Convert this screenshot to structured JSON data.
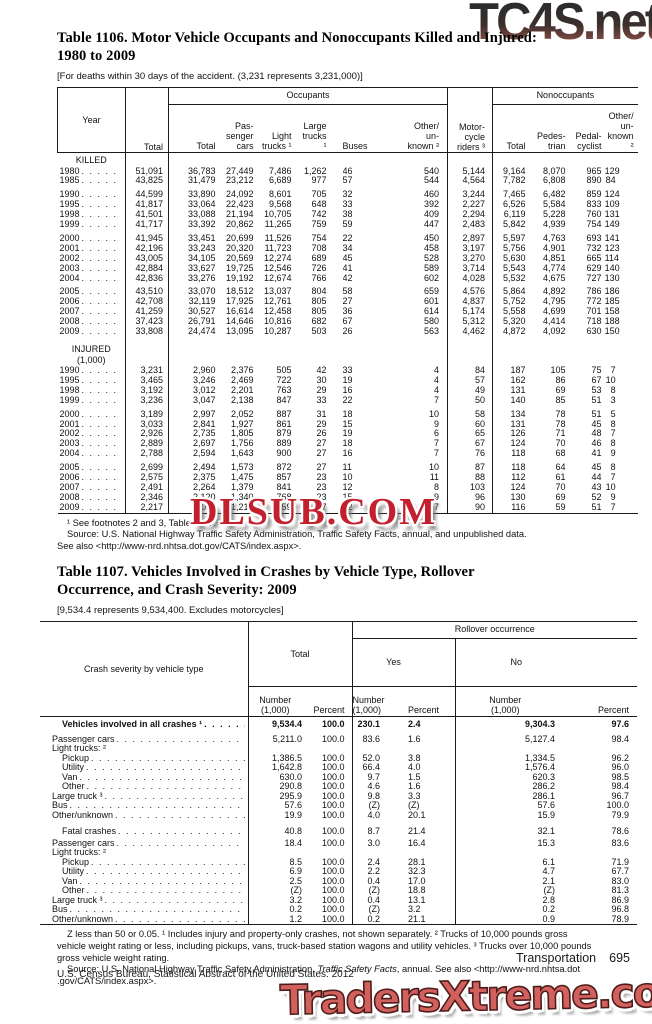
{
  "watermarks": {
    "top": "TC4S.net",
    "middle": "DLSUB.COM",
    "bottom": "TradersXtreme.com"
  },
  "page_footer": {
    "section": "Transportation",
    "page_number": "695",
    "census_line": "U.S. Census Bureau, Statistical Abstract of the United States: 2012"
  },
  "table1106": {
    "title_lines": [
      "Table 1106. Motor Vehicle Occupants and Nonoccupants Killed and Injured:",
      "1980 to 2009"
    ],
    "note": "[For deaths within 30 days of the accident. (3,231 represents 3,231,000)]",
    "header": {
      "year": "Year",
      "total": "Total",
      "occupants": "Occupants",
      "nonoccupants": "Nonoccupants",
      "motorcycle": "Motor-\ncycle\nriders ³",
      "occ_cols": [
        "Total",
        "Pas-\nsenger\ncars",
        "Light\ntrucks ¹",
        "Large\ntrucks ¹",
        "Buses",
        "Other/\nun-\nknown ²"
      ],
      "non_cols": [
        "Total",
        "Pedes-\ntrian",
        "Pedal-\ncyclist",
        "Other/\nun-\nknown ²"
      ]
    },
    "sections": [
      {
        "label": "KILLED",
        "groups": [
          [
            [
              "1980",
              "51,091",
              "36,783",
              "27,449",
              "7,486",
              "1,262",
              "46",
              "540",
              "5,144",
              "9,164",
              "8,070",
              "965",
              "129"
            ],
            [
              "1985",
              "43,825",
              "31,479",
              "23,212",
              "6,689",
              "977",
              "57",
              "544",
              "4,564",
              "7,782",
              "6,808",
              "890",
              "84"
            ]
          ],
          [
            [
              "1990",
              "44,599",
              "33,890",
              "24,092",
              "8,601",
              "705",
              "32",
              "460",
              "3,244",
              "7,465",
              "6,482",
              "859",
              "124"
            ],
            [
              "1995",
              "41,817",
              "33,064",
              "22,423",
              "9,568",
              "648",
              "33",
              "392",
              "2,227",
              "6,526",
              "5,584",
              "833",
              "109"
            ],
            [
              "1998",
              "41,501",
              "33,088",
              "21,194",
              "10,705",
              "742",
              "38",
              "409",
              "2,294",
              "6,119",
              "5,228",
              "760",
              "131"
            ],
            [
              "1999",
              "41,717",
              "33,392",
              "20,862",
              "11,265",
              "759",
              "59",
              "447",
              "2,483",
              "5,842",
              "4,939",
              "754",
              "149"
            ]
          ],
          [
            [
              "2000",
              "41,945",
              "33,451",
              "20,699",
              "11,526",
              "754",
              "22",
              "450",
              "2,897",
              "5,597",
              "4,763",
              "693",
              "141"
            ],
            [
              "2001",
              "42,196",
              "33,243",
              "20,320",
              "11,723",
              "708",
              "34",
              "458",
              "3,197",
              "5,756",
              "4,901",
              "732",
              "123"
            ],
            [
              "2002",
              "43,005",
              "34,105",
              "20,569",
              "12,274",
              "689",
              "45",
              "528",
              "3,270",
              "5,630",
              "4,851",
              "665",
              "114"
            ],
            [
              "2003",
              "42,884",
              "33,627",
              "19,725",
              "12,546",
              "726",
              "41",
              "589",
              "3,714",
              "5,543",
              "4,774",
              "629",
              "140"
            ],
            [
              "2004",
              "42,836",
              "33,276",
              "19,192",
              "12,674",
              "766",
              "42",
              "602",
              "4,028",
              "5,532",
              "4,675",
              "727",
              "130"
            ]
          ],
          [
            [
              "2005",
              "43,510",
              "33,070",
              "18,512",
              "13,037",
              "804",
              "58",
              "659",
              "4,576",
              "5,864",
              "4,892",
              "786",
              "186"
            ],
            [
              "2006",
              "42,708",
              "32,119",
              "17,925",
              "12,761",
              "805",
              "27",
              "601",
              "4,837",
              "5,752",
              "4,795",
              "772",
              "185"
            ],
            [
              "2007",
              "41,259",
              "30,527",
              "16,614",
              "12,458",
              "805",
              "36",
              "614",
              "5,174",
              "5,558",
              "4,699",
              "701",
              "158"
            ],
            [
              "2008",
              "37,423",
              "26,791",
              "14,646",
              "10,816",
              "682",
              "67",
              "580",
              "5,312",
              "5,320",
              "4,414",
              "718",
              "188"
            ],
            [
              "2009",
              "33,808",
              "24,474",
              "13,095",
              "10,287",
              "503",
              "26",
              "563",
              "4,462",
              "4,872",
              "4,092",
              "630",
              "150"
            ]
          ]
        ]
      },
      {
        "label": "INJURED\n(1,000)",
        "groups": [
          [
            [
              "1990",
              "3,231",
              "2,960",
              "2,376",
              "505",
              "42",
              "33",
              "4",
              "84",
              "187",
              "105",
              "75",
              "7"
            ],
            [
              "1995",
              "3,465",
              "3,246",
              "2,469",
              "722",
              "30",
              "19",
              "4",
              "57",
              "162",
              "86",
              "67",
              "10"
            ],
            [
              "1998",
              "3,192",
              "3,012",
              "2,201",
              "763",
              "29",
              "16",
              "4",
              "49",
              "131",
              "69",
              "53",
              "8"
            ],
            [
              "1999",
              "3,236",
              "3,047",
              "2,138",
              "847",
              "33",
              "22",
              "7",
              "50",
              "140",
              "85",
              "51",
              "3"
            ]
          ],
          [
            [
              "2000",
              "3,189",
              "2,997",
              "2,052",
              "887",
              "31",
              "18",
              "10",
              "58",
              "134",
              "78",
              "51",
              "5"
            ],
            [
              "2001",
              "3,033",
              "2,841",
              "1,927",
              "861",
              "29",
              "15",
              "9",
              "60",
              "131",
              "78",
              "45",
              "8"
            ],
            [
              "2002",
              "2,926",
              "2,735",
              "1,805",
              "879",
              "26",
              "19",
              "6",
              "65",
              "126",
              "71",
              "48",
              "7"
            ],
            [
              "2003",
              "2,889",
              "2,697",
              "1,756",
              "889",
              "27",
              "18",
              "7",
              "67",
              "124",
              "70",
              "46",
              "8"
            ],
            [
              "2004",
              "2,788",
              "2,594",
              "1,643",
              "900",
              "27",
              "16",
              "7",
              "76",
              "118",
              "68",
              "41",
              "9"
            ]
          ],
          [
            [
              "2005",
              "2,699",
              "2,494",
              "1,573",
              "872",
              "27",
              "11",
              "10",
              "87",
              "118",
              "64",
              "45",
              "8"
            ],
            [
              "2006",
              "2,575",
              "2,375",
              "1,475",
              "857",
              "23",
              "10",
              "11",
              "88",
              "112",
              "61",
              "44",
              "7"
            ],
            [
              "2007",
              "2,491",
              "2,264",
              "1,379",
              "841",
              "23",
              "12",
              "8",
              "103",
              "124",
              "70",
              "43",
              "10"
            ],
            [
              "2008",
              "2,346",
              "2,120",
              "1,340",
              "768",
              "23",
              "15",
              "9",
              "96",
              "130",
              "69",
              "52",
              "9"
            ],
            [
              "2009",
              "2,217",
              "2,011",
              "1,216",
              "759",
              "17",
              "12",
              "7",
              "90",
              "116",
              "59",
              "51",
              "7"
            ]
          ]
        ]
      }
    ],
    "footnote1": "¹ See footnotes 2 and 3, Table 1107.",
    "source": "Source: U.S. National Highway Traffic Safety Administration, Traffic Safety Facts, annual, and unpublished data.",
    "see_also": "See also <http://www-nrd.nhtsa.dot.gov/CATS/index.aspx>."
  },
  "table1107": {
    "title_lines": [
      "Table 1107. Vehicles Involved in Crashes by Vehicle Type, Rollover",
      "Occurrence, and Crash Severity: 2009"
    ],
    "note": "[9,534.4 represents 9,534,400. Excludes motorcycles]",
    "header": {
      "stub": "Crash severity by vehicle type",
      "total": "Total",
      "rollover": "Rollover occurrence",
      "yes": "Yes",
      "no": "No",
      "number": "Number\n(1,000)",
      "percent": "Percent"
    },
    "rows": [
      {
        "label": "Vehicles involved in all crashes ¹",
        "bold": true,
        "indent": 1,
        "leader": true,
        "values": [
          "9,534.4",
          "100.0",
          "230.1",
          "2.4",
          "9,304.3",
          "97.6"
        ]
      },
      {
        "gap": 5
      },
      {
        "label": "Passenger cars",
        "leader": true,
        "values": [
          "5,211.0",
          "100.0",
          "83.6",
          "1.6",
          "5,127.4",
          "98.4"
        ]
      },
      {
        "label": "Light trucks: ²",
        "leader": false,
        "values": []
      },
      {
        "label": "Pickup",
        "indent": 1,
        "leader": true,
        "values": [
          "1,386.5",
          "100.0",
          "52.0",
          "3.8",
          "1,334.5",
          "96.2"
        ]
      },
      {
        "label": "Utility",
        "indent": 1,
        "leader": true,
        "values": [
          "1,642.8",
          "100.0",
          "66.4",
          "4.0",
          "1,576.4",
          "96.0"
        ]
      },
      {
        "label": "Van",
        "indent": 1,
        "leader": true,
        "values": [
          "630.0",
          "100.0",
          "9.7",
          "1.5",
          "620.3",
          "98.5"
        ]
      },
      {
        "label": "Other",
        "indent": 1,
        "leader": true,
        "values": [
          "290.8",
          "100.0",
          "4.6",
          "1.6",
          "286.2",
          "98.4"
        ]
      },
      {
        "label": "Large truck ³",
        "leader": true,
        "values": [
          "295.9",
          "100.0",
          "9.8",
          "3.3",
          "286.1",
          "96.7"
        ]
      },
      {
        "label": "Bus",
        "leader": true,
        "values": [
          "57.6",
          "100.0",
          "(Z)",
          "(Z)",
          "57.6",
          "100.0"
        ]
      },
      {
        "label": "Other/unknown",
        "leader": true,
        "values": [
          "19.9",
          "100.0",
          "4.0",
          "20.1",
          "15.9",
          "79.9"
        ]
      },
      {
        "gap": 7
      },
      {
        "label": "Fatal crashes",
        "indent": 1,
        "leader": true,
        "values": [
          "40.8",
          "100.0",
          "8.7",
          "21.4",
          "32.1",
          "78.6"
        ]
      },
      {
        "gap": 2
      },
      {
        "label": "Passenger cars",
        "leader": true,
        "values": [
          "18.4",
          "100.0",
          "3.0",
          "16.4",
          "15.3",
          "83.6"
        ]
      },
      {
        "label": "Light trucks: ²",
        "leader": false,
        "values": []
      },
      {
        "label": "Pickup",
        "indent": 1,
        "leader": true,
        "values": [
          "8.5",
          "100.0",
          "2.4",
          "28.1",
          "6.1",
          "71.9"
        ]
      },
      {
        "label": "Utility",
        "indent": 1,
        "leader": true,
        "values": [
          "6.9",
          "100.0",
          "2.2",
          "32.3",
          "4.7",
          "67.7"
        ]
      },
      {
        "label": "Van",
        "indent": 1,
        "leader": true,
        "values": [
          "2.5",
          "100.0",
          "0.4",
          "17.0",
          "2.1",
          "83.0"
        ]
      },
      {
        "label": "Other",
        "indent": 1,
        "leader": true,
        "values": [
          "(Z)",
          "100.0",
          "(Z)",
          "18.8",
          "(Z)",
          "81.3"
        ]
      },
      {
        "label": "Large truck ³",
        "leader": true,
        "values": [
          "3.2",
          "100.0",
          "0.4",
          "13.1",
          "2.8",
          "86.9"
        ]
      },
      {
        "label": "Bus",
        "leader": true,
        "values": [
          "0.2",
          "100.0",
          "(Z)",
          "3.2",
          "0.2",
          "96.8"
        ]
      },
      {
        "label": "Other/unknown",
        "leader": true,
        "values": [
          "1.2",
          "100.0",
          "0.2",
          "21.1",
          "0.9",
          "78.9"
        ]
      }
    ],
    "footnote_lines": [
      "Z less than 50 or 0.05. ¹ Includes injury and property-only crashes, not shown separately. ² Trucks of 10,000 pounds gross",
      "vehicle weight rating or less, including pickups, vans, truck-based station wagons and utility vehicles. ³ Trucks over 10,000 pounds",
      "gross vehicle weight rating."
    ],
    "source_parts": {
      "prefix": "Source: U.S. National Highway Traffic Safety Administration, ",
      "italic": "Traffic Safety Facts",
      "suffix": ", annual. See also <http://www-nrd.nhtsa.dot",
      "line2": ".gov/CATS/index.aspx>."
    }
  }
}
